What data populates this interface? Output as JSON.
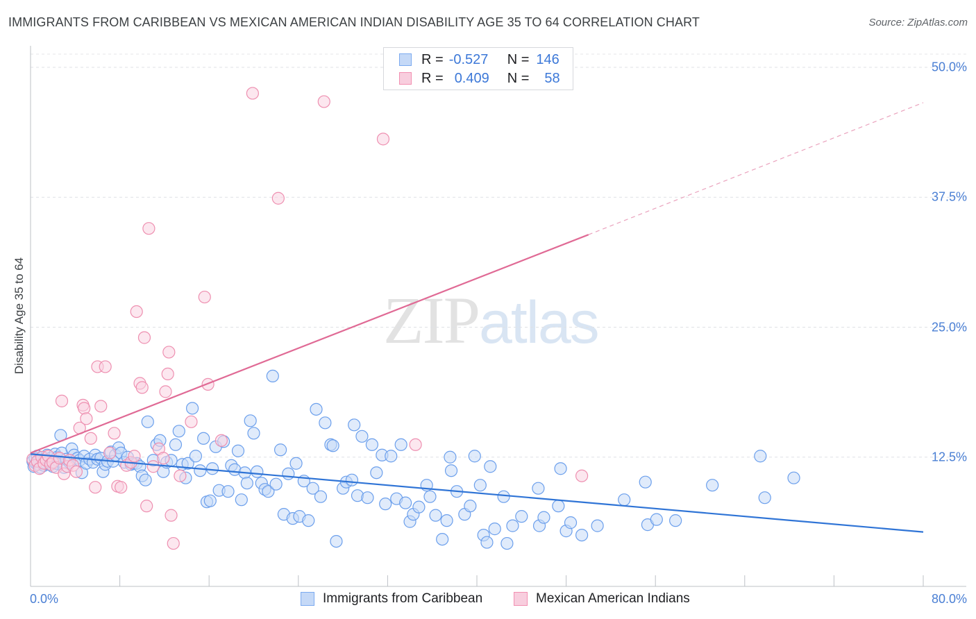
{
  "header": {
    "title": "IMMIGRANTS FROM CARIBBEAN VS MEXICAN AMERICAN INDIAN DISABILITY AGE 35 TO 64 CORRELATION CHART",
    "source": "Source: ZipAtlas.com"
  },
  "watermark": {
    "zip": "ZIP",
    "atlas": "atlas"
  },
  "stats": {
    "rows": [
      {
        "r_label": "R =",
        "r_value": "-0.527",
        "n_label": "N =",
        "n_value": "146",
        "color": "#7baaf0"
      },
      {
        "r_label": "R =",
        "r_value": "0.409",
        "n_label": "N =",
        "n_value": "58",
        "color": "#f28fb1"
      }
    ]
  },
  "legend": {
    "items": [
      {
        "label": "Immigrants from Caribbean",
        "color": "#7baaf0"
      },
      {
        "label": "Mexican American Indians",
        "color": "#f28fb1"
      }
    ]
  },
  "chart_data": {
    "type": "scatter",
    "title": "IMMIGRANTS FROM CARIBBEAN VS MEXICAN AMERICAN INDIAN DISABILITY AGE 35 TO 64 CORRELATION CHART",
    "xlabel": "",
    "ylabel": "Disability Age 35 to 64",
    "xlim": [
      0,
      80
    ],
    "ylim": [
      0,
      52
    ],
    "x_tick_labels": [
      "0.0%",
      "80.0%"
    ],
    "y_ticks": [
      12.5,
      25.0,
      37.5,
      50.0
    ],
    "y_tick_labels": [
      "12.5%",
      "25.0%",
      "37.5%",
      "50.0%"
    ],
    "grid": true,
    "series": [
      {
        "name": "Immigrants from Caribbean",
        "color": "#7baaf0",
        "trend": {
          "x0": 0,
          "y0": 12.8,
          "x1": 80,
          "y1": 5.3,
          "style": "solid"
        },
        "points": [
          [
            0.2,
            12.1
          ],
          [
            0.3,
            11.6
          ],
          [
            0.4,
            12.4
          ],
          [
            0.5,
            11.9
          ],
          [
            0.6,
            12.6
          ],
          [
            0.7,
            11.8
          ],
          [
            0.8,
            12.2
          ],
          [
            0.9,
            11.5
          ],
          [
            1.0,
            12.0
          ],
          [
            1.1,
            12.5
          ],
          [
            1.2,
            11.7
          ],
          [
            1.3,
            12.3
          ],
          [
            1.4,
            11.9
          ],
          [
            1.5,
            12.7
          ],
          [
            1.6,
            12.1
          ],
          [
            1.7,
            11.8
          ],
          [
            1.8,
            12.4
          ],
          [
            1.9,
            12.0
          ],
          [
            2.0,
            11.6
          ],
          [
            2.1,
            12.2
          ],
          [
            2.2,
            12.8
          ],
          [
            2.3,
            11.9
          ],
          [
            2.4,
            12.5
          ],
          [
            2.5,
            12.1
          ],
          [
            2.7,
            14.6
          ],
          [
            2.8,
            12.9
          ],
          [
            3.0,
            11.5
          ],
          [
            3.2,
            12.3
          ],
          [
            3.5,
            12.0
          ],
          [
            3.7,
            13.3
          ],
          [
            3.9,
            12.7
          ],
          [
            4.2,
            12.4
          ],
          [
            4.4,
            12.2
          ],
          [
            4.6,
            11.0
          ],
          [
            4.8,
            12.6
          ],
          [
            5.0,
            11.9
          ],
          [
            5.3,
            12.3
          ],
          [
            5.6,
            12.0
          ],
          [
            5.8,
            12.7
          ],
          [
            6.0,
            12.3
          ],
          [
            6.3,
            12.4
          ],
          [
            6.5,
            11.1
          ],
          [
            6.7,
            11.8
          ],
          [
            6.9,
            12.1
          ],
          [
            7.2,
            13.0
          ],
          [
            7.4,
            12.1
          ],
          [
            7.6,
            12.7
          ],
          [
            7.9,
            13.4
          ],
          [
            8.1,
            12.9
          ],
          [
            8.4,
            12.0
          ],
          [
            8.7,
            12.5
          ],
          [
            9.0,
            11.8
          ],
          [
            9.2,
            11.9
          ],
          [
            9.5,
            11.9
          ],
          [
            9.8,
            11.6
          ],
          [
            10.0,
            10.7
          ],
          [
            10.3,
            10.3
          ],
          [
            10.5,
            15.9
          ],
          [
            11.0,
            12.2
          ],
          [
            11.3,
            13.7
          ],
          [
            11.6,
            14.1
          ],
          [
            11.9,
            11.1
          ],
          [
            12.2,
            12.0
          ],
          [
            12.6,
            12.2
          ],
          [
            13.0,
            13.7
          ],
          [
            13.3,
            15.0
          ],
          [
            13.6,
            11.8
          ],
          [
            13.9,
            10.5
          ],
          [
            14.1,
            11.9
          ],
          [
            14.5,
            17.2
          ],
          [
            14.8,
            12.6
          ],
          [
            15.2,
            11.2
          ],
          [
            15.5,
            14.3
          ],
          [
            15.8,
            8.2
          ],
          [
            16.1,
            8.3
          ],
          [
            16.3,
            11.4
          ],
          [
            16.6,
            13.5
          ],
          [
            16.9,
            9.3
          ],
          [
            17.3,
            14.0
          ],
          [
            17.7,
            9.2
          ],
          [
            18.0,
            11.7
          ],
          [
            18.3,
            11.3
          ],
          [
            18.6,
            13.1
          ],
          [
            18.9,
            8.4
          ],
          [
            19.2,
            11.0
          ],
          [
            19.4,
            10.0
          ],
          [
            19.7,
            16.0
          ],
          [
            20.0,
            14.8
          ],
          [
            20.3,
            11.1
          ],
          [
            20.7,
            10.0
          ],
          [
            21.0,
            9.4
          ],
          [
            21.3,
            9.2
          ],
          [
            21.7,
            20.3
          ],
          [
            22.0,
            9.9
          ],
          [
            22.4,
            13.2
          ],
          [
            22.7,
            7.0
          ],
          [
            23.1,
            10.9
          ],
          [
            23.5,
            6.6
          ],
          [
            23.8,
            11.9
          ],
          [
            24.1,
            6.8
          ],
          [
            24.5,
            10.2
          ],
          [
            24.9,
            6.4
          ],
          [
            25.3,
            9.5
          ],
          [
            25.6,
            17.1
          ],
          [
            26.0,
            8.7
          ],
          [
            26.4,
            15.8
          ],
          [
            26.9,
            13.7
          ],
          [
            27.1,
            13.6
          ],
          [
            27.4,
            4.4
          ],
          [
            28.0,
            9.5
          ],
          [
            28.3,
            10.1
          ],
          [
            28.8,
            10.3
          ],
          [
            29.0,
            15.6
          ],
          [
            29.3,
            8.8
          ],
          [
            29.7,
            14.5
          ],
          [
            30.2,
            8.6
          ],
          [
            30.6,
            13.7
          ],
          [
            31.0,
            11.0
          ],
          [
            31.5,
            12.7
          ],
          [
            31.8,
            8.0
          ],
          [
            32.3,
            12.6
          ],
          [
            32.8,
            8.5
          ],
          [
            33.2,
            13.7
          ],
          [
            33.6,
            8.1
          ],
          [
            34.0,
            6.3
          ],
          [
            34.3,
            7.0
          ],
          [
            34.8,
            7.7
          ],
          [
            35.5,
            9.8
          ],
          [
            35.8,
            8.7
          ],
          [
            36.3,
            6.9
          ],
          [
            36.9,
            4.6
          ],
          [
            37.3,
            6.4
          ],
          [
            37.6,
            12.5
          ],
          [
            37.7,
            11.2
          ],
          [
            38.2,
            9.2
          ],
          [
            38.9,
            7.0
          ],
          [
            39.4,
            7.8
          ],
          [
            39.8,
            12.6
          ],
          [
            40.3,
            9.8
          ],
          [
            40.6,
            5.0
          ],
          [
            41.2,
            11.6
          ],
          [
            40.9,
            4.3
          ],
          [
            41.6,
            5.6
          ],
          [
            42.4,
            8.7
          ],
          [
            42.7,
            4.2
          ],
          [
            43.2,
            5.9
          ],
          [
            44.0,
            6.8
          ],
          [
            45.5,
            9.5
          ],
          [
            45.6,
            5.9
          ],
          [
            46.0,
            6.7
          ],
          [
            47.3,
            7.8
          ],
          [
            47.5,
            11.4
          ],
          [
            48.0,
            5.4
          ],
          [
            48.4,
            6.2
          ],
          [
            49.4,
            5.0
          ],
          [
            50.8,
            5.9
          ],
          [
            53.2,
            8.4
          ],
          [
            55.1,
            10.1
          ],
          [
            55.3,
            6.0
          ],
          [
            56.1,
            6.5
          ],
          [
            57.8,
            6.4
          ],
          [
            61.1,
            9.8
          ],
          [
            65.4,
            12.6
          ],
          [
            65.8,
            8.6
          ],
          [
            68.4,
            10.5
          ]
        ]
      },
      {
        "name": "Mexican American Indians",
        "color": "#f28fb1",
        "trend": {
          "x0": 0,
          "y0": 12.9,
          "x1": 50,
          "y1": 33.9,
          "style": "solid",
          "dashed_to": {
            "x": 80,
            "y": 46.6
          }
        },
        "points": [
          [
            0.2,
            12.3
          ],
          [
            0.4,
            11.7
          ],
          [
            0.6,
            12.1
          ],
          [
            0.8,
            11.4
          ],
          [
            1.0,
            12.5
          ],
          [
            1.2,
            11.9
          ],
          [
            1.4,
            12.2
          ],
          [
            1.6,
            12.6
          ],
          [
            1.8,
            11.8
          ],
          [
            2.0,
            12.0
          ],
          [
            2.3,
            11.5
          ],
          [
            2.6,
            12.4
          ],
          [
            2.8,
            17.9
          ],
          [
            3.0,
            10.9
          ],
          [
            3.3,
            11.6
          ],
          [
            3.5,
            12.2
          ],
          [
            3.8,
            11.7
          ],
          [
            4.1,
            11.1
          ],
          [
            4.4,
            15.3
          ],
          [
            4.7,
            17.5
          ],
          [
            4.8,
            17.2
          ],
          [
            5.0,
            16.2
          ],
          [
            5.4,
            14.3
          ],
          [
            5.8,
            9.6
          ],
          [
            6.0,
            21.2
          ],
          [
            6.3,
            17.4
          ],
          [
            6.7,
            21.2
          ],
          [
            7.1,
            12.9
          ],
          [
            7.5,
            14.8
          ],
          [
            7.8,
            9.7
          ],
          [
            8.1,
            9.6
          ],
          [
            8.6,
            11.7
          ],
          [
            9.0,
            12.0
          ],
          [
            9.3,
            12.6
          ],
          [
            9.5,
            26.5
          ],
          [
            9.8,
            19.6
          ],
          [
            10.0,
            19.2
          ],
          [
            10.2,
            24.0
          ],
          [
            10.4,
            7.8
          ],
          [
            10.6,
            34.5
          ],
          [
            11.0,
            11.6
          ],
          [
            11.5,
            13.3
          ],
          [
            11.9,
            12.4
          ],
          [
            12.1,
            18.8
          ],
          [
            12.3,
            20.5
          ],
          [
            12.4,
            22.6
          ],
          [
            12.6,
            6.9
          ],
          [
            12.8,
            4.2
          ],
          [
            13.4,
            10.7
          ],
          [
            14.4,
            15.9
          ],
          [
            15.6,
            27.9
          ],
          [
            15.9,
            19.5
          ],
          [
            17.1,
            14.1
          ],
          [
            19.9,
            47.5
          ],
          [
            22.2,
            37.4
          ],
          [
            26.3,
            46.7
          ],
          [
            31.6,
            43.1
          ],
          [
            34.5,
            13.7
          ],
          [
            49.4,
            10.7
          ]
        ]
      }
    ]
  }
}
